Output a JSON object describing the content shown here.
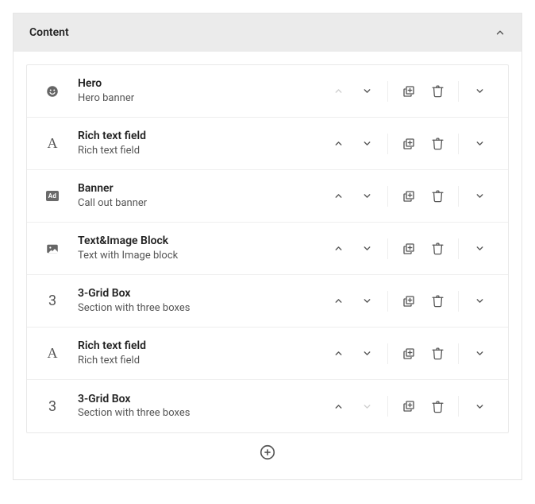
{
  "panel": {
    "title": "Content"
  },
  "items": [
    {
      "icon": "smiley",
      "title": "Hero",
      "subtitle": "Hero banner",
      "up_disabled": true,
      "down_disabled": false
    },
    {
      "icon": "letterA",
      "title": "Rich text field",
      "subtitle": "Rich text field",
      "up_disabled": false,
      "down_disabled": false
    },
    {
      "icon": "ad",
      "title": "Banner",
      "subtitle": "Call out banner",
      "up_disabled": false,
      "down_disabled": false
    },
    {
      "icon": "image",
      "title": "Text&Image Block",
      "subtitle": "Text with Image block",
      "up_disabled": false,
      "down_disabled": false
    },
    {
      "icon": "number3",
      "title": "3-Grid Box",
      "subtitle": "Section with three boxes",
      "up_disabled": false,
      "down_disabled": false
    },
    {
      "icon": "letterA",
      "title": "Rich text field",
      "subtitle": "Rich text field",
      "up_disabled": false,
      "down_disabled": false
    },
    {
      "icon": "number3",
      "title": "3-Grid Box",
      "subtitle": "Section with three boxes",
      "up_disabled": false,
      "down_disabled": true
    }
  ],
  "icons": {
    "ad_label": "Ad",
    "letterA": "A",
    "number3": "3"
  }
}
